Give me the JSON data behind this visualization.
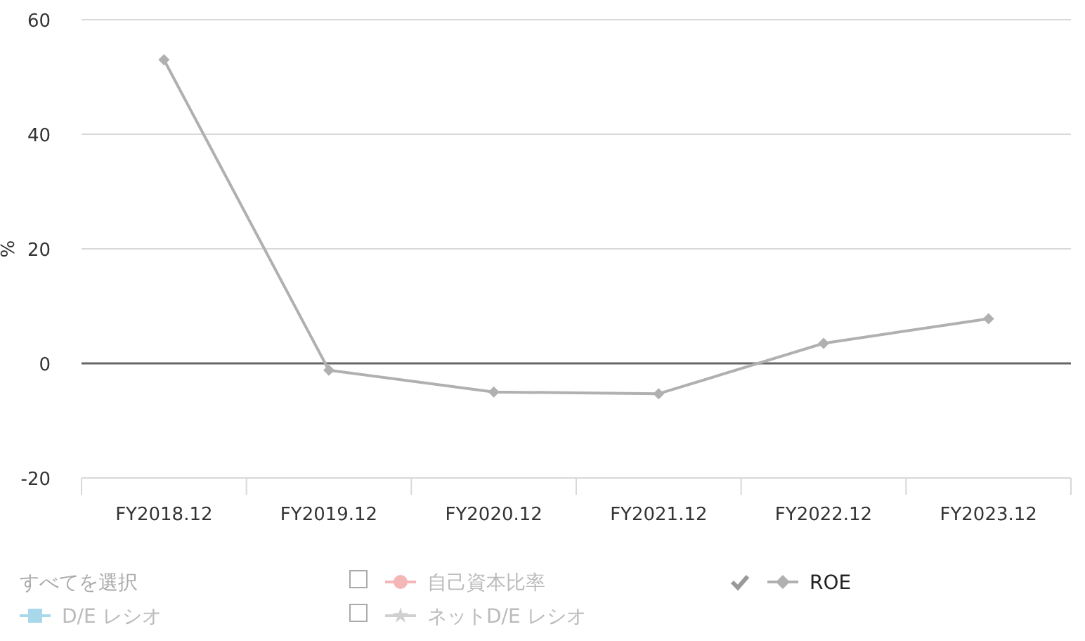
{
  "chart_data": {
    "type": "line",
    "ylabel": "%",
    "categories": [
      "FY2018.12",
      "FY2019.12",
      "FY2020.12",
      "FY2021.12",
      "FY2022.12",
      "FY2023.12"
    ],
    "series": [
      {
        "name": "自己資本比率",
        "color": "#f4b6b6",
        "marker": "circle",
        "values": [
          null,
          null,
          null,
          null,
          null,
          null
        ]
      },
      {
        "name": "ROE",
        "color": "#b0b0b0",
        "marker": "diamond",
        "values": [
          53.0,
          -1.2,
          -5.0,
          -5.3,
          3.5,
          7.8
        ]
      },
      {
        "name": "D/E レシオ",
        "color": "#a8d8ea",
        "marker": "square",
        "values": [
          null,
          null,
          null,
          null,
          null,
          null
        ]
      },
      {
        "name": "ネットD/E レシオ",
        "color": "#d0d0d0",
        "marker": "star",
        "values": [
          null,
          null,
          null,
          null,
          null,
          null
        ]
      }
    ],
    "annotations": [
      "すべてを選択"
    ],
    "ylim": [
      -20,
      60
    ],
    "yticks": [
      -20,
      0,
      20,
      40,
      60
    ],
    "grid": "y",
    "legend": "bottom",
    "line_style": "solid"
  }
}
